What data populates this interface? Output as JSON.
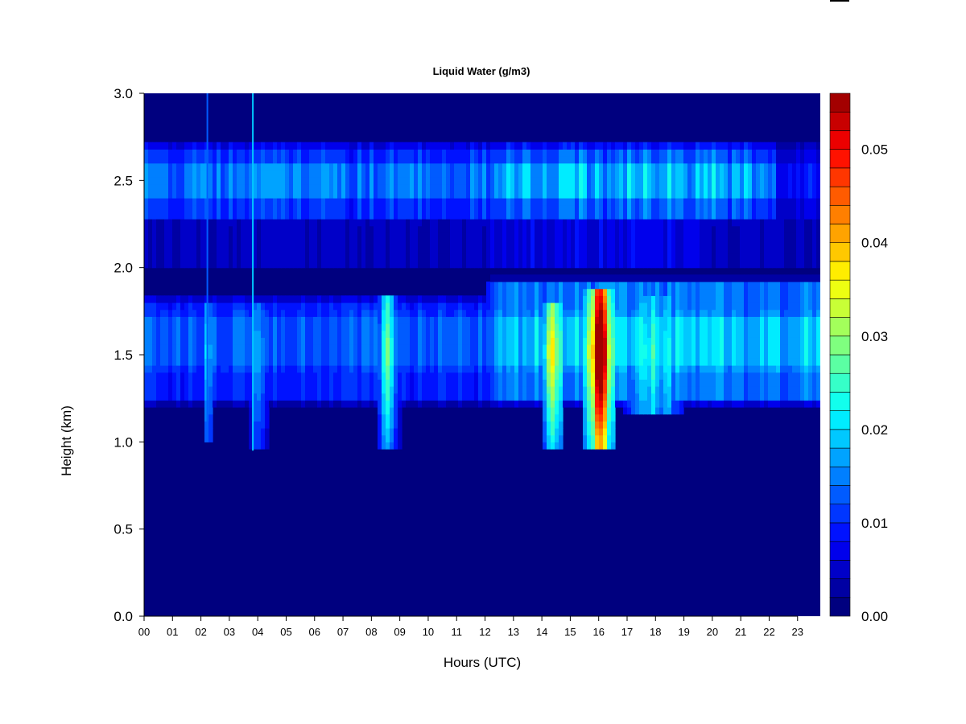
{
  "chart_data": {
    "type": "heatmap",
    "title": "Liquid Water (g/m3)",
    "xlabel": "Hours (UTC)",
    "ylabel": "Height (km)",
    "xlim": [
      0,
      23.8
    ],
    "ylim": [
      0,
      3.0
    ],
    "x_ticks": [
      "00",
      "01",
      "02",
      "03",
      "04",
      "05",
      "06",
      "07",
      "08",
      "09",
      "10",
      "11",
      "12",
      "13",
      "14",
      "15",
      "16",
      "17",
      "18",
      "19",
      "20",
      "21",
      "22",
      "23"
    ],
    "y_ticks": [
      "0.0",
      "0.5",
      "1.0",
      "1.5",
      "2.0",
      "2.5",
      "3.0"
    ],
    "colorbar": {
      "range": [
        0,
        0.056
      ],
      "tick_labels": [
        "0.00",
        "0.01",
        "0.02",
        "0.03",
        "0.04",
        "0.05"
      ],
      "tick_values": [
        0,
        0.01,
        0.02,
        0.03,
        0.04,
        0.05
      ],
      "levels": 28,
      "colors": [
        "#00007F",
        "#0000A3",
        "#0000C8",
        "#0000EC",
        "#0012FF",
        "#0036FF",
        "#005BFF",
        "#007FFF",
        "#00A3FF",
        "#00C8FF",
        "#00ECFF",
        "#12FFED",
        "#36FFC8",
        "#5BFFA3",
        "#7FFF7F",
        "#A3FF5B",
        "#C8FF36",
        "#EDFF12",
        "#FFED00",
        "#FFC800",
        "#FFA300",
        "#FF7F00",
        "#FF5B00",
        "#FF3600",
        "#FF1200",
        "#EC0000",
        "#C80000",
        "#A30000"
      ]
    },
    "background_value": 0.0,
    "features": [
      {
        "name": "upper cloud layer",
        "x_range": [
          0,
          23.8
        ],
        "y_range": [
          2.25,
          2.72
        ],
        "peak": 0.015
      },
      {
        "name": "lower cloud layer",
        "x_range": [
          0,
          23.8
        ],
        "y_range": [
          1.2,
          1.8
        ],
        "peak": 0.012
      },
      {
        "name": "cloud column ~02",
        "x_range": [
          2.1,
          2.4
        ],
        "y_range": [
          1.0,
          1.8
        ],
        "peak": 0.02
      },
      {
        "name": "cloud column ~04",
        "x_range": [
          3.7,
          4.4
        ],
        "y_range": [
          0.95,
          1.8
        ],
        "peak": 0.02
      },
      {
        "name": "cloud column ~08.5",
        "x_range": [
          8.2,
          9.0
        ],
        "y_range": [
          0.95,
          1.85
        ],
        "peak": 0.025
      },
      {
        "name": "cloud column ~14.5",
        "x_range": [
          14.0,
          14.8
        ],
        "y_range": [
          0.95,
          1.8
        ],
        "peak": 0.035
      },
      {
        "name": "cloud core ~16",
        "x_range": [
          15.5,
          16.6
        ],
        "y_range": [
          0.95,
          1.9
        ],
        "peak": 0.055
      },
      {
        "name": "cloud band 17-19",
        "x_range": [
          16.8,
          19.0
        ],
        "y_range": [
          1.15,
          1.85
        ],
        "peak": 0.025
      }
    ]
  }
}
